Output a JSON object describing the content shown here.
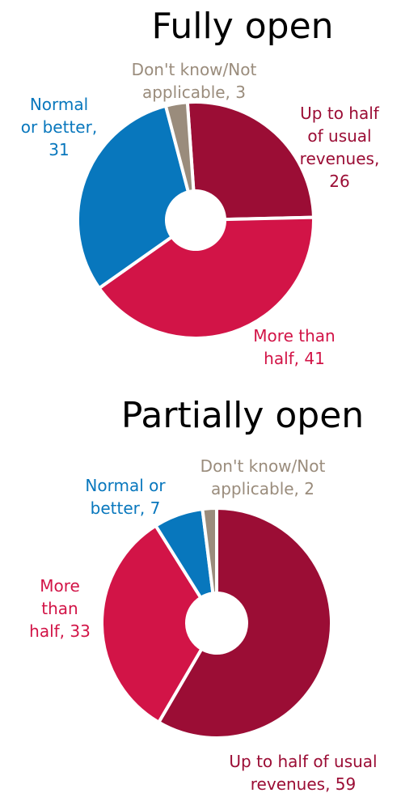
{
  "colors": {
    "up_to_half": "#9B0D35",
    "more_than_half": "#D21447",
    "normal_or_better": "#0877BD",
    "dont_know": "#9A8C7C",
    "gap": "#ffffff"
  },
  "chart_data": [
    {
      "type": "pie",
      "title": "Fully open",
      "unit": "percent",
      "slices": [
        {
          "name": "Up to half of usual revenues",
          "value": 26,
          "color_key": "up_to_half",
          "label_lines": [
            "Up to half",
            "of usual",
            "revenues,",
            "26"
          ]
        },
        {
          "name": "More than half",
          "value": 41,
          "color_key": "more_than_half",
          "label_lines": [
            "More than",
            "half,  41"
          ]
        },
        {
          "name": "Normal or better",
          "value": 31,
          "color_key": "normal_or_better",
          "label_lines": [
            "Normal",
            "or better,",
            "31"
          ]
        },
        {
          "name": "Don't know/Not applicable",
          "value": 3,
          "color_key": "dont_know",
          "label_lines": [
            "Don't know/Not",
            "applicable,  3"
          ]
        }
      ]
    },
    {
      "type": "pie",
      "title": "Partially  open",
      "unit": "percent",
      "slices": [
        {
          "name": "Up to half of usual revenues",
          "value": 59,
          "color_key": "up_to_half",
          "label_lines": [
            "Up to half of usual",
            "revenues, 59"
          ]
        },
        {
          "name": "More than half",
          "value": 33,
          "color_key": "more_than_half",
          "label_lines": [
            "More",
            "than",
            "half, 33"
          ]
        },
        {
          "name": "Normal or better",
          "value": 7,
          "color_key": "normal_or_better",
          "label_lines": [
            "Normal or",
            "better, 7"
          ]
        },
        {
          "name": "Don't know/Not applicable",
          "value": 2,
          "color_key": "dont_know",
          "label_lines": [
            "Don't know/Not",
            "applicable, 2"
          ]
        }
      ]
    }
  ]
}
